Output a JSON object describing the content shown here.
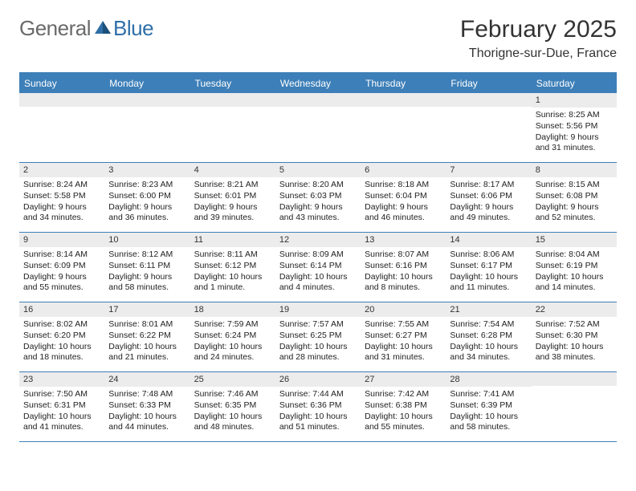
{
  "brand": {
    "part1": "General",
    "part2": "Blue"
  },
  "title": "February 2025",
  "subtitle": "Thorigne-sur-Due, France",
  "colors": {
    "header_bar": "#3d7fb8",
    "daynum_bg": "#ececec",
    "text": "#222222",
    "title_text": "#333333",
    "background": "#ffffff"
  },
  "fonts": {
    "base": "Arial",
    "cell_size_pt": 10.5,
    "title_size_pt": 30,
    "subtitle_size_pt": 16,
    "dow_size_pt": 12
  },
  "dow": [
    "Sunday",
    "Monday",
    "Tuesday",
    "Wednesday",
    "Thursday",
    "Friday",
    "Saturday"
  ],
  "weeks": [
    [
      null,
      null,
      null,
      null,
      null,
      null,
      {
        "n": "1",
        "sr": "Sunrise: 8:25 AM",
        "ss": "Sunset: 5:56 PM",
        "d1": "Daylight: 9 hours",
        "d2": "and 31 minutes."
      }
    ],
    [
      {
        "n": "2",
        "sr": "Sunrise: 8:24 AM",
        "ss": "Sunset: 5:58 PM",
        "d1": "Daylight: 9 hours",
        "d2": "and 34 minutes."
      },
      {
        "n": "3",
        "sr": "Sunrise: 8:23 AM",
        "ss": "Sunset: 6:00 PM",
        "d1": "Daylight: 9 hours",
        "d2": "and 36 minutes."
      },
      {
        "n": "4",
        "sr": "Sunrise: 8:21 AM",
        "ss": "Sunset: 6:01 PM",
        "d1": "Daylight: 9 hours",
        "d2": "and 39 minutes."
      },
      {
        "n": "5",
        "sr": "Sunrise: 8:20 AM",
        "ss": "Sunset: 6:03 PM",
        "d1": "Daylight: 9 hours",
        "d2": "and 43 minutes."
      },
      {
        "n": "6",
        "sr": "Sunrise: 8:18 AM",
        "ss": "Sunset: 6:04 PM",
        "d1": "Daylight: 9 hours",
        "d2": "and 46 minutes."
      },
      {
        "n": "7",
        "sr": "Sunrise: 8:17 AM",
        "ss": "Sunset: 6:06 PM",
        "d1": "Daylight: 9 hours",
        "d2": "and 49 minutes."
      },
      {
        "n": "8",
        "sr": "Sunrise: 8:15 AM",
        "ss": "Sunset: 6:08 PM",
        "d1": "Daylight: 9 hours",
        "d2": "and 52 minutes."
      }
    ],
    [
      {
        "n": "9",
        "sr": "Sunrise: 8:14 AM",
        "ss": "Sunset: 6:09 PM",
        "d1": "Daylight: 9 hours",
        "d2": "and 55 minutes."
      },
      {
        "n": "10",
        "sr": "Sunrise: 8:12 AM",
        "ss": "Sunset: 6:11 PM",
        "d1": "Daylight: 9 hours",
        "d2": "and 58 minutes."
      },
      {
        "n": "11",
        "sr": "Sunrise: 8:11 AM",
        "ss": "Sunset: 6:12 PM",
        "d1": "Daylight: 10 hours",
        "d2": "and 1 minute."
      },
      {
        "n": "12",
        "sr": "Sunrise: 8:09 AM",
        "ss": "Sunset: 6:14 PM",
        "d1": "Daylight: 10 hours",
        "d2": "and 4 minutes."
      },
      {
        "n": "13",
        "sr": "Sunrise: 8:07 AM",
        "ss": "Sunset: 6:16 PM",
        "d1": "Daylight: 10 hours",
        "d2": "and 8 minutes."
      },
      {
        "n": "14",
        "sr": "Sunrise: 8:06 AM",
        "ss": "Sunset: 6:17 PM",
        "d1": "Daylight: 10 hours",
        "d2": "and 11 minutes."
      },
      {
        "n": "15",
        "sr": "Sunrise: 8:04 AM",
        "ss": "Sunset: 6:19 PM",
        "d1": "Daylight: 10 hours",
        "d2": "and 14 minutes."
      }
    ],
    [
      {
        "n": "16",
        "sr": "Sunrise: 8:02 AM",
        "ss": "Sunset: 6:20 PM",
        "d1": "Daylight: 10 hours",
        "d2": "and 18 minutes."
      },
      {
        "n": "17",
        "sr": "Sunrise: 8:01 AM",
        "ss": "Sunset: 6:22 PM",
        "d1": "Daylight: 10 hours",
        "d2": "and 21 minutes."
      },
      {
        "n": "18",
        "sr": "Sunrise: 7:59 AM",
        "ss": "Sunset: 6:24 PM",
        "d1": "Daylight: 10 hours",
        "d2": "and 24 minutes."
      },
      {
        "n": "19",
        "sr": "Sunrise: 7:57 AM",
        "ss": "Sunset: 6:25 PM",
        "d1": "Daylight: 10 hours",
        "d2": "and 28 minutes."
      },
      {
        "n": "20",
        "sr": "Sunrise: 7:55 AM",
        "ss": "Sunset: 6:27 PM",
        "d1": "Daylight: 10 hours",
        "d2": "and 31 minutes."
      },
      {
        "n": "21",
        "sr": "Sunrise: 7:54 AM",
        "ss": "Sunset: 6:28 PM",
        "d1": "Daylight: 10 hours",
        "d2": "and 34 minutes."
      },
      {
        "n": "22",
        "sr": "Sunrise: 7:52 AM",
        "ss": "Sunset: 6:30 PM",
        "d1": "Daylight: 10 hours",
        "d2": "and 38 minutes."
      }
    ],
    [
      {
        "n": "23",
        "sr": "Sunrise: 7:50 AM",
        "ss": "Sunset: 6:31 PM",
        "d1": "Daylight: 10 hours",
        "d2": "and 41 minutes."
      },
      {
        "n": "24",
        "sr": "Sunrise: 7:48 AM",
        "ss": "Sunset: 6:33 PM",
        "d1": "Daylight: 10 hours",
        "d2": "and 44 minutes."
      },
      {
        "n": "25",
        "sr": "Sunrise: 7:46 AM",
        "ss": "Sunset: 6:35 PM",
        "d1": "Daylight: 10 hours",
        "d2": "and 48 minutes."
      },
      {
        "n": "26",
        "sr": "Sunrise: 7:44 AM",
        "ss": "Sunset: 6:36 PM",
        "d1": "Daylight: 10 hours",
        "d2": "and 51 minutes."
      },
      {
        "n": "27",
        "sr": "Sunrise: 7:42 AM",
        "ss": "Sunset: 6:38 PM",
        "d1": "Daylight: 10 hours",
        "d2": "and 55 minutes."
      },
      {
        "n": "28",
        "sr": "Sunrise: 7:41 AM",
        "ss": "Sunset: 6:39 PM",
        "d1": "Daylight: 10 hours",
        "d2": "and 58 minutes."
      },
      null
    ]
  ]
}
